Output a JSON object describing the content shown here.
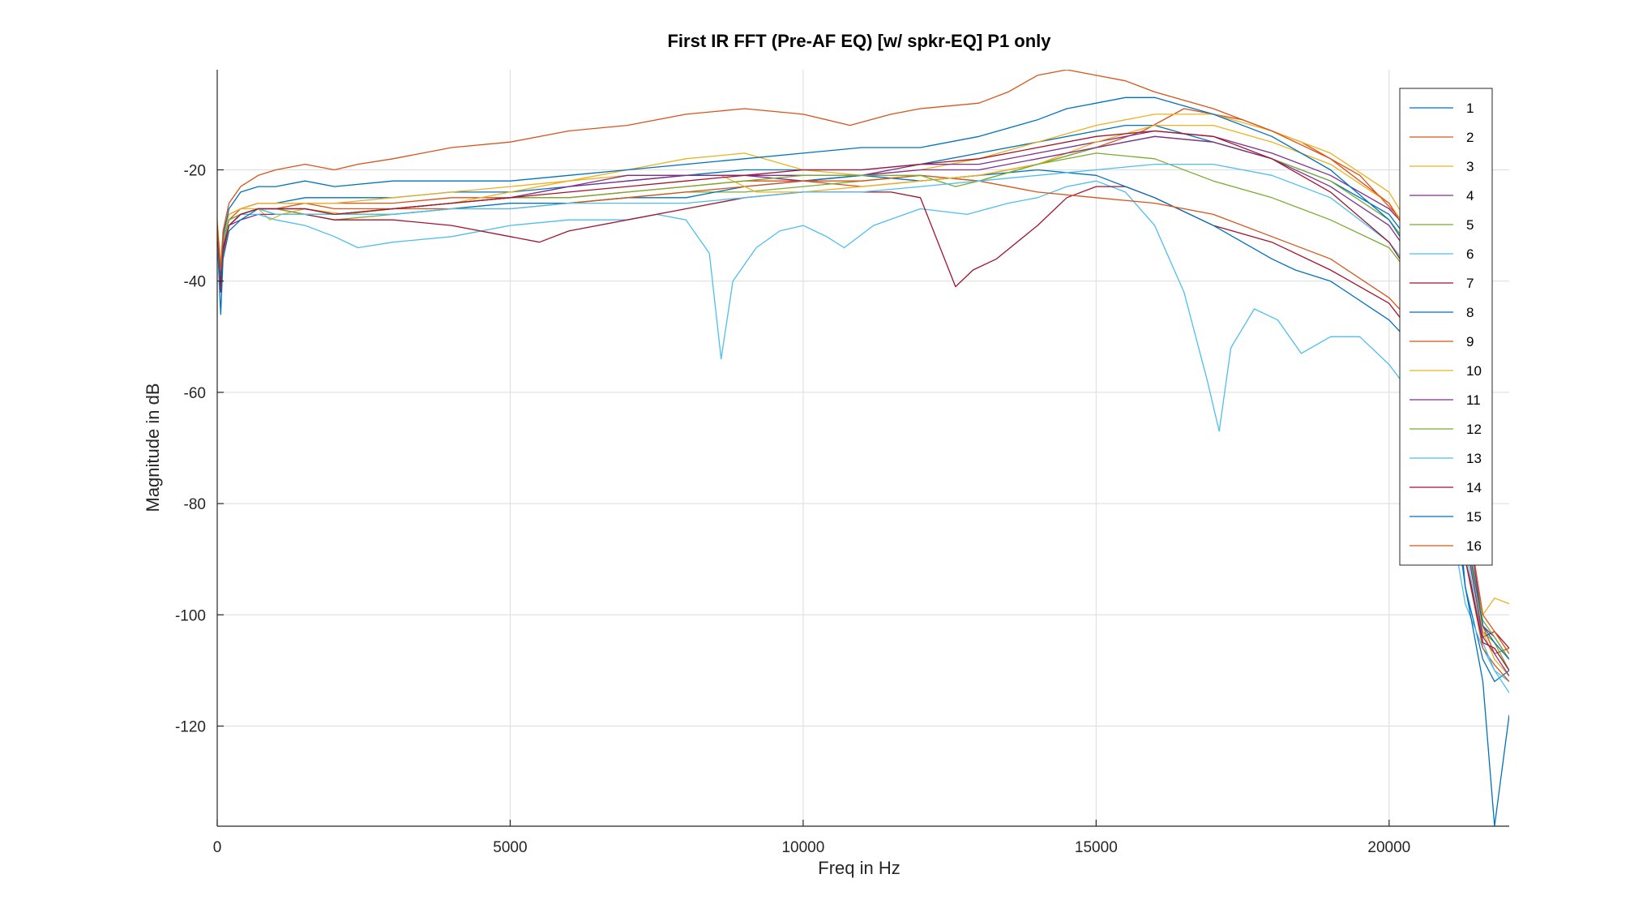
{
  "chart_data": {
    "type": "line",
    "title": "First IR FFT (Pre-AF EQ) [w/ spkr-EQ] P1 only",
    "xlabel": "Freq in Hz",
    "ylabel": "Magnitude in dB",
    "xlim": [
      0,
      22050
    ],
    "ylim": [
      -138,
      -2
    ],
    "xticks": [
      0,
      5000,
      10000,
      15000,
      20000
    ],
    "yticks": [
      -120,
      -100,
      -80,
      -60,
      -40,
      -20
    ],
    "grid": true,
    "legend_position": "top-right",
    "colors": [
      "#0072BD",
      "#D95319",
      "#EDB120",
      "#7E2F8E",
      "#77AC30",
      "#4DBEEE",
      "#A2142F",
      "#0072BD",
      "#D95319",
      "#EDB120",
      "#7E2F8E",
      "#77AC30",
      "#4DBEEE",
      "#A2142F",
      "#0072BD",
      "#D95319"
    ],
    "series": [
      {
        "name": "1",
        "x": [
          0,
          60,
          100,
          200,
          400,
          700,
          1000,
          1500,
          2000,
          3000,
          4000,
          5000,
          6000,
          7000,
          8000,
          9000,
          10000,
          11000,
          12000,
          13000,
          14000,
          15000,
          15500,
          16000,
          17000,
          18000,
          19000,
          20000,
          20500,
          21000,
          21300,
          21600,
          21800,
          22050
        ],
        "y": [
          -30,
          -38,
          -32,
          -28,
          -27,
          -26,
          -26,
          -25,
          -25,
          -25,
          -24,
          -24,
          -23,
          -22,
          -21,
          -20,
          -20,
          -20,
          -19,
          -17,
          -15,
          -13,
          -12,
          -12,
          -15,
          -18,
          -22,
          -28,
          -35,
          -60,
          -95,
          -108,
          -112,
          -110
        ]
      },
      {
        "name": "2",
        "x": [
          0,
          60,
          100,
          200,
          400,
          700,
          1000,
          1500,
          2000,
          3000,
          4000,
          5000,
          6000,
          7000,
          8000,
          9000,
          10000,
          11000,
          12000,
          13000,
          14000,
          15000,
          15800,
          16500,
          17500,
          18500,
          19500,
          20300,
          21000,
          21300,
          21600,
          21800,
          22050
        ],
        "y": [
          -31,
          -40,
          -33,
          -29,
          -28,
          -27,
          -27,
          -26,
          -26,
          -26,
          -25,
          -25,
          -25,
          -24,
          -23,
          -22,
          -22,
          -23,
          -22,
          -21,
          -19,
          -16,
          -13,
          -9,
          -11,
          -15,
          -21,
          -30,
          -45,
          -80,
          -102,
          -107,
          -106
        ]
      },
      {
        "name": "3",
        "x": [
          0,
          60,
          100,
          200,
          400,
          700,
          900,
          1100,
          1500,
          2200,
          3000,
          4000,
          5000,
          6000,
          7000,
          7500,
          8000,
          9000,
          10000,
          11000,
          12000,
          13000,
          14000,
          15000,
          16000,
          17000,
          18000,
          19000,
          20000,
          20800,
          21200,
          21600,
          21800,
          22050
        ],
        "y": [
          -29,
          -37,
          -31,
          -28,
          -27,
          -27,
          -29,
          -28,
          -27,
          -28,
          -27,
          -26,
          -24,
          -22,
          -20,
          -19,
          -18,
          -17,
          -20,
          -21,
          -20,
          -18,
          -15,
          -12,
          -10,
          -10,
          -13,
          -17,
          -24,
          -38,
          -80,
          -100,
          -97,
          -98
        ]
      },
      {
        "name": "4",
        "x": [
          0,
          60,
          100,
          200,
          400,
          700,
          1000,
          1500,
          2000,
          3000,
          4000,
          5000,
          6000,
          7000,
          8000,
          9000,
          10000,
          11000,
          12000,
          13000,
          14000,
          15000,
          16000,
          17000,
          18000,
          19000,
          20000,
          20800,
          21300,
          21600,
          21800,
          22050
        ],
        "y": [
          -31,
          -41,
          -34,
          -30,
          -29,
          -28,
          -28,
          -28,
          -28,
          -27,
          -26,
          -25,
          -23,
          -22,
          -21,
          -21,
          -22,
          -21,
          -19,
          -19,
          -17,
          -15,
          -13,
          -14,
          -17,
          -21,
          -27,
          -36,
          -80,
          -102,
          -104,
          -108
        ]
      },
      {
        "name": "5",
        "x": [
          0,
          60,
          100,
          200,
          400,
          700,
          1000,
          1500,
          2000,
          3000,
          4000,
          5000,
          6000,
          7000,
          8000,
          9000,
          10000,
          11000,
          12000,
          13000,
          14000,
          15000,
          16000,
          17000,
          18000,
          19000,
          20000,
          20800,
          21300,
          21600,
          21800,
          22050
        ],
        "y": [
          -30,
          -40,
          -33,
          -29,
          -28,
          -27,
          -28,
          -28,
          -29,
          -28,
          -27,
          -26,
          -26,
          -25,
          -24,
          -24,
          -23,
          -22,
          -21,
          -22,
          -19,
          -16,
          -14,
          -15,
          -18,
          -22,
          -29,
          -40,
          -85,
          -103,
          -105,
          -110
        ]
      },
      {
        "name": "6",
        "x": [
          0,
          60,
          100,
          200,
          400,
          700,
          1000,
          1500,
          2000,
          2400,
          3000,
          4000,
          5000,
          6000,
          7000,
          7500,
          8000,
          8400,
          8600,
          8800,
          9200,
          9600,
          10000,
          10400,
          10700,
          11200,
          12000,
          12800,
          13500,
          14000,
          14500,
          15000,
          15500,
          16000,
          16500,
          16900,
          17100,
          17300,
          17700,
          18100,
          18500,
          19000,
          19500,
          20000,
          20500,
          21000,
          21300,
          21600,
          21800,
          22050
        ],
        "y": [
          -31,
          -40,
          -33,
          -29,
          -28,
          -28,
          -29,
          -30,
          -32,
          -34,
          -33,
          -32,
          -30,
          -29,
          -29,
          -28,
          -29,
          -35,
          -54,
          -40,
          -34,
          -31,
          -30,
          -32,
          -34,
          -30,
          -27,
          -28,
          -26,
          -25,
          -23,
          -22,
          -24,
          -30,
          -42,
          -58,
          -67,
          -52,
          -45,
          -47,
          -53,
          -50,
          -50,
          -55,
          -62,
          -80,
          -98,
          -106,
          -110,
          -112
        ]
      },
      {
        "name": "7",
        "x": [
          0,
          60,
          100,
          200,
          400,
          700,
          1000,
          1500,
          2000,
          3000,
          4000,
          5000,
          5500,
          6000,
          7000,
          8000,
          9000,
          10000,
          11000,
          11500,
          12000,
          12300,
          12600,
          12900,
          13300,
          14000,
          14500,
          15000,
          15500,
          16000,
          17000,
          18000,
          19000,
          20000,
          20800,
          21300,
          21600,
          21800,
          22050
        ],
        "y": [
          -31,
          -42,
          -35,
          -30,
          -28,
          -27,
          -27,
          -28,
          -29,
          -29,
          -30,
          -32,
          -33,
          -31,
          -29,
          -27,
          -25,
          -24,
          -24,
          -24,
          -25,
          -33,
          -41,
          -38,
          -36,
          -30,
          -25,
          -23,
          -23,
          -25,
          -30,
          -33,
          -38,
          -44,
          -55,
          -90,
          -104,
          -103,
          -106
        ]
      },
      {
        "name": "8",
        "x": [
          0,
          60,
          100,
          200,
          400,
          700,
          1000,
          1500,
          2000,
          3000,
          4000,
          5000,
          6000,
          7000,
          8000,
          9000,
          10000,
          11000,
          12000,
          13000,
          14000,
          15000,
          16000,
          17000,
          18000,
          18400,
          19000,
          20000,
          20800,
          21300,
          21600,
          21800,
          22050
        ],
        "y": [
          -32,
          -46,
          -36,
          -31,
          -29,
          -27,
          -27,
          -27,
          -28,
          -28,
          -27,
          -26,
          -26,
          -25,
          -25,
          -23,
          -22,
          -21,
          -22,
          -21,
          -20,
          -21,
          -25,
          -30,
          -36,
          -38,
          -40,
          -47,
          -56,
          -95,
          -112,
          -138,
          -118
        ]
      },
      {
        "name": "9",
        "x": [
          0,
          60,
          100,
          200,
          400,
          700,
          1000,
          1500,
          2000,
          3000,
          4000,
          5000,
          6000,
          7000,
          8000,
          9000,
          10000,
          11000,
          12000,
          13000,
          14000,
          15000,
          16000,
          17000,
          18000,
          19000,
          20000,
          20800,
          21300,
          21600,
          21800,
          22050
        ],
        "y": [
          -31,
          -40,
          -33,
          -29,
          -27,
          -26,
          -26,
          -26,
          -27,
          -27,
          -27,
          -27,
          -26,
          -25,
          -24,
          -23,
          -22,
          -22,
          -21,
          -22,
          -24,
          -25,
          -26,
          -28,
          -32,
          -36,
          -43,
          -52,
          -90,
          -106,
          -109,
          -112
        ]
      },
      {
        "name": "10",
        "x": [
          0,
          60,
          100,
          200,
          400,
          700,
          1000,
          1500,
          2000,
          3000,
          4000,
          5000,
          6000,
          7000,
          8000,
          8600,
          9200,
          10000,
          11000,
          12000,
          13000,
          14000,
          15000,
          16000,
          17000,
          18000,
          19000,
          20000,
          20800,
          21300,
          21600,
          21800,
          22050
        ],
        "y": [
          -30,
          -39,
          -32,
          -28,
          -27,
          -26,
          -26,
          -26,
          -26,
          -25,
          -24,
          -23,
          -22,
          -21,
          -21,
          -21,
          -24,
          -24,
          -23,
          -22,
          -21,
          -19,
          -15,
          -12,
          -12,
          -15,
          -19,
          -26,
          -38,
          -84,
          -103,
          -108,
          -111
        ]
      },
      {
        "name": "11",
        "x": [
          0,
          60,
          100,
          200,
          400,
          700,
          1000,
          1500,
          2000,
          3000,
          4000,
          5000,
          6000,
          7000,
          8000,
          9000,
          10000,
          11000,
          12000,
          13000,
          14000,
          15000,
          16000,
          17000,
          18000,
          19000,
          20000,
          20800,
          21300,
          21600,
          21800,
          22050
        ],
        "y": [
          -31,
          -41,
          -34,
          -30,
          -28,
          -27,
          -27,
          -27,
          -28,
          -27,
          -26,
          -25,
          -23,
          -21,
          -21,
          -21,
          -21,
          -21,
          -20,
          -20,
          -18,
          -16,
          -14,
          -15,
          -18,
          -23,
          -30,
          -42,
          -86,
          -104,
          -107,
          -111
        ]
      },
      {
        "name": "12",
        "x": [
          0,
          60,
          100,
          200,
          400,
          700,
          1000,
          1500,
          2000,
          3000,
          4000,
          5000,
          6000,
          7000,
          8000,
          9000,
          10000,
          11000,
          12000,
          12600,
          13000,
          14000,
          15000,
          16000,
          17000,
          18000,
          19000,
          20000,
          20800,
          21300,
          21600,
          21800,
          22050
        ],
        "y": [
          -30,
          -39,
          -33,
          -29,
          -28,
          -27,
          -27,
          -28,
          -28,
          -27,
          -26,
          -25,
          -25,
          -24,
          -23,
          -22,
          -21,
          -21,
          -21,
          -23,
          -22,
          -19,
          -17,
          -18,
          -22,
          -25,
          -29,
          -34,
          -45,
          -86,
          -101,
          -104,
          -108
        ]
      },
      {
        "name": "13",
        "x": [
          0,
          60,
          100,
          200,
          400,
          700,
          1000,
          1500,
          2000,
          3000,
          4000,
          5000,
          6000,
          7000,
          8000,
          9000,
          10000,
          11000,
          12000,
          13000,
          14000,
          15000,
          16000,
          17000,
          18000,
          19000,
          20000,
          20800,
          21300,
          21600,
          21800,
          22050
        ],
        "y": [
          -32,
          -41,
          -34,
          -30,
          -28,
          -27,
          -28,
          -28,
          -28,
          -28,
          -27,
          -27,
          -26,
          -26,
          -26,
          -25,
          -24,
          -24,
          -23,
          -22,
          -21,
          -20,
          -19,
          -19,
          -21,
          -25,
          -33,
          -44,
          -88,
          -105,
          -110,
          -114
        ]
      },
      {
        "name": "14",
        "x": [
          0,
          60,
          100,
          200,
          400,
          700,
          1000,
          1500,
          2000,
          3000,
          4000,
          5000,
          6000,
          7000,
          8000,
          9000,
          10000,
          11000,
          12000,
          13000,
          14000,
          15000,
          16000,
          17000,
          18000,
          19000,
          20000,
          20800,
          21300,
          21600,
          21800,
          22050
        ],
        "y": [
          -31,
          -41,
          -34,
          -30,
          -28,
          -27,
          -27,
          -27,
          -28,
          -27,
          -26,
          -25,
          -24,
          -23,
          -22,
          -21,
          -20,
          -20,
          -19,
          -18,
          -16,
          -14,
          -13,
          -14,
          -18,
          -24,
          -33,
          -46,
          -90,
          -105,
          -106,
          -110
        ]
      },
      {
        "name": "15",
        "x": [
          0,
          60,
          100,
          200,
          400,
          700,
          1000,
          1500,
          2000,
          3000,
          4000,
          5000,
          6000,
          7000,
          8000,
          9000,
          10000,
          11000,
          12000,
          13000,
          14000,
          14500,
          15000,
          15500,
          16000,
          17000,
          18000,
          19000,
          20000,
          20800,
          21300,
          21600,
          21800,
          22050
        ],
        "y": [
          -30,
          -39,
          -32,
          -27,
          -24,
          -23,
          -23,
          -22,
          -23,
          -22,
          -22,
          -22,
          -21,
          -20,
          -19,
          -18,
          -17,
          -16,
          -16,
          -14,
          -11,
          -9,
          -8,
          -7,
          -7,
          -10,
          -14,
          -20,
          -29,
          -42,
          -84,
          -102,
          -105,
          -108
        ]
      },
      {
        "name": "16",
        "x": [
          0,
          60,
          100,
          200,
          400,
          700,
          1000,
          1500,
          2000,
          2400,
          3000,
          4000,
          5000,
          6000,
          7000,
          8000,
          9000,
          10000,
          10800,
          11500,
          12000,
          13000,
          13500,
          14000,
          14500,
          15000,
          15500,
          16000,
          17000,
          18000,
          19000,
          20000,
          20800,
          21300,
          21600,
          21800,
          22050
        ],
        "y": [
          -30,
          -38,
          -31,
          -26,
          -23,
          -21,
          -20,
          -19,
          -20,
          -19,
          -18,
          -16,
          -15,
          -13,
          -12,
          -10,
          -9,
          -10,
          -12,
          -10,
          -9,
          -8,
          -6,
          -3,
          -2,
          -3,
          -4,
          -6,
          -9,
          -13,
          -18,
          -26,
          -40,
          -80,
          -100,
          -103,
          -107
        ]
      }
    ]
  }
}
